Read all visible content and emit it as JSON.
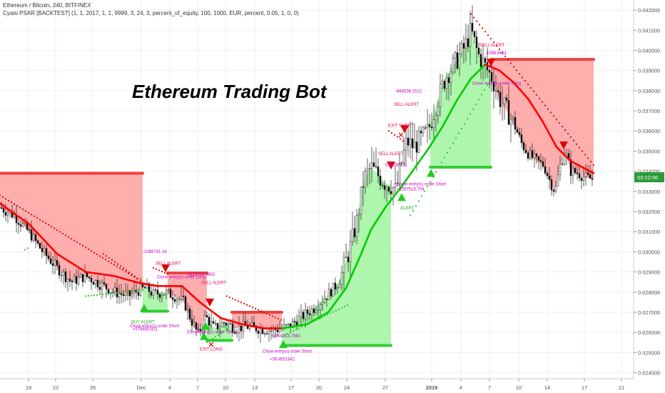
{
  "header": {
    "symbol_line": "Ethereum / Bitcoin, 240, BITFINEX",
    "indicator_line": "Cyato PSAR [BACKTEST] (1, 1, 2017, 1, 1, 9999, 3, 24, 3, percent_of_equity, 100, 1000, EUR, percent, 0.05, 1, 0, 0)"
  },
  "title": "Ethereum Trading Bot",
  "last_price_label": "03:22:06",
  "colors": {
    "up_candle": "#ffffff",
    "down_candle": "#000000",
    "ema": "#ff0000",
    "ema_up": "#00cc00",
    "loss_fill": "#ffaaaa",
    "gain_fill": "#aaf5aa",
    "sar_dots_red": "#e00000",
    "sar_dots_green": "#22cc22",
    "label_red": "#e0005a",
    "label_purple": "#c000c0",
    "price_box": "#2b9a3a"
  },
  "annotations": [
    {
      "text": "-1069741.16",
      "color": "#c000c0",
      "at": [
        200,
        0.02995
      ]
    },
    {
      "text": "SELL ALERT",
      "color": "#e0005a",
      "at": [
        218,
        0.02935
      ]
    },
    {
      "text": "Close entry(s) order Short",
      "color": "#c000c0",
      "at": [
        182,
        0.02625
      ]
    },
    {
      "text": "+579465.821",
      "color": "#c000c0",
      "at": [
        186,
        0.0261
      ]
    },
    {
      "text": "BUY ALERT",
      "color": "#22aa22",
      "at": [
        184,
        0.02645
      ]
    },
    {
      "text": "-1112228.4802",
      "color": "#c000c0",
      "at": [
        262,
        0.0288
      ]
    },
    {
      "text": "SELL ALERT",
      "color": "#e0005a",
      "at": [
        282,
        0.0284
      ]
    },
    {
      "text": "Close entry(s) order Long",
      "color": "#c000c0",
      "at": [
        220,
        0.02868
      ]
    },
    {
      "text": "EXIT LONG",
      "color": "#e0005a",
      "at": [
        280,
        0.0251
      ]
    },
    {
      "text": "Close entry(s) order Short",
      "color": "#c000c0",
      "at": [
        262,
        0.02595
      ]
    },
    {
      "text": "+1090113.7981",
      "color": "#c000c0",
      "at": [
        380,
        0.02575
      ]
    },
    {
      "text": "Close entry(s) order Short",
      "color": "#c000c0",
      "at": [
        368,
        0.025
      ]
    },
    {
      "text": "+39.4551642",
      "color": "#c000c0",
      "at": [
        378,
        0.0246
      ]
    },
    {
      "text": "-864536.1512",
      "color": "#c000c0",
      "at": [
        554,
        0.0379
      ]
    },
    {
      "text": "SELL ALERT",
      "color": "#e0005a",
      "at": [
        552,
        0.03725
      ]
    },
    {
      "text": "EXIT SHORT",
      "color": "#e0005a",
      "at": [
        544,
        0.0362
      ]
    },
    {
      "text": "SELL ALERT",
      "color": "#e0005a",
      "at": [
        530,
        0.0348
      ]
    },
    {
      "text": "-1357587.3",
      "color": "#c000c0",
      "at": [
        538,
        0.03425
      ]
    },
    {
      "text": "Close entry(s) order Short",
      "color": "#c000c0",
      "at": [
        556,
        0.0333
      ]
    },
    {
      "text": "+1057519.704",
      "color": "#c000c0",
      "at": [
        556,
        0.03305
      ]
    },
    {
      "text": "ALERT",
      "color": "#22aa22",
      "at": [
        561,
        0.0321
      ]
    },
    {
      "text": "SELL ALERT",
      "color": "#e0005a",
      "at": [
        672,
        0.0402
      ]
    },
    {
      "text": "-1089.8651",
      "color": "#c000c0",
      "at": [
        680,
        0.0398
      ]
    },
    {
      "text": "Close entry(s) order Long",
      "color": "#c000c0",
      "at": [
        662,
        0.0383
      ]
    }
  ],
  "chart_data": {
    "type": "candlestick",
    "title": "Ethereum Trading Bot",
    "symbol": "Ethereum / Bitcoin",
    "interval": "240",
    "exchange": "BITFINEX",
    "ylim": [
      0.0237,
      0.0425
    ],
    "y_ticks": [
      "0.024000",
      "0.025000",
      "0.026000",
      "0.027000",
      "0.028000",
      "0.029000",
      "0.030000",
      "0.031000",
      "0.032000",
      "0.033000",
      "0.034000",
      "0.035000",
      "0.036000",
      "0.037000",
      "0.038000",
      "0.039000",
      "0.040000",
      "0.041000",
      "0.042000"
    ],
    "x_ticks": [
      "19",
      "22",
      "26",
      "Dec",
      "4",
      "7",
      "10",
      "13",
      "17",
      "20",
      "24",
      "27",
      "2019",
      "4",
      "7",
      "10",
      "14",
      "17",
      "21"
    ],
    "grid": true,
    "close_path": [
      [
        0,
        0.0322
      ],
      [
        20,
        0.0318
      ],
      [
        40,
        0.031
      ],
      [
        60,
        0.03
      ],
      [
        80,
        0.0292
      ],
      [
        100,
        0.0285
      ],
      [
        120,
        0.0288
      ],
      [
        140,
        0.0284
      ],
      [
        160,
        0.028
      ],
      [
        180,
        0.0278
      ],
      [
        195,
        0.0281
      ],
      [
        205,
        0.0282
      ],
      [
        215,
        0.0279
      ],
      [
        230,
        0.028
      ],
      [
        245,
        0.0278
      ],
      [
        258,
        0.0275
      ],
      [
        268,
        0.0266
      ],
      [
        278,
        0.0259
      ],
      [
        288,
        0.0268
      ],
      [
        300,
        0.0262
      ],
      [
        315,
        0.0265
      ],
      [
        330,
        0.0262
      ],
      [
        345,
        0.0263
      ],
      [
        360,
        0.0262
      ],
      [
        380,
        0.0261
      ],
      [
        395,
        0.0262
      ],
      [
        405,
        0.0263
      ],
      [
        420,
        0.0267
      ],
      [
        440,
        0.0272
      ],
      [
        460,
        0.0279
      ],
      [
        475,
        0.0285
      ],
      [
        490,
        0.0301
      ],
      [
        500,
        0.0315
      ],
      [
        510,
        0.0336
      ],
      [
        520,
        0.0342
      ],
      [
        530,
        0.0338
      ],
      [
        540,
        0.0334
      ],
      [
        548,
        0.0333
      ],
      [
        555,
        0.033
      ],
      [
        562,
        0.0343
      ],
      [
        570,
        0.0355
      ],
      [
        580,
        0.0352
      ],
      [
        590,
        0.0356
      ],
      [
        600,
        0.036
      ],
      [
        612,
        0.0374
      ],
      [
        625,
        0.0387
      ],
      [
        640,
        0.0395
      ],
      [
        652,
        0.0402
      ],
      [
        660,
        0.041
      ],
      [
        670,
        0.0398
      ],
      [
        680,
        0.0392
      ],
      [
        690,
        0.0386
      ],
      [
        700,
        0.0376
      ],
      [
        712,
        0.0369
      ],
      [
        722,
        0.0362
      ],
      [
        732,
        0.0353
      ],
      [
        742,
        0.0348
      ],
      [
        752,
        0.0345
      ],
      [
        762,
        0.0343
      ],
      [
        772,
        0.0334
      ],
      [
        778,
        0.033
      ],
      [
        785,
        0.0343
      ],
      [
        792,
        0.035
      ],
      [
        800,
        0.034
      ],
      [
        810,
        0.0339
      ],
      [
        820,
        0.0337
      ],
      [
        832,
        0.0336
      ]
    ],
    "moving_average": [
      [
        0,
        0.0324
      ],
      [
        40,
        0.0314
      ],
      [
        80,
        0.0299
      ],
      [
        120,
        0.029
      ],
      [
        160,
        0.0288
      ],
      [
        190,
        0.0285
      ],
      [
        220,
        0.0283
      ],
      [
        255,
        0.0283
      ],
      [
        280,
        0.0275
      ],
      [
        310,
        0.0267
      ],
      [
        340,
        0.0264
      ],
      [
        370,
        0.0262
      ],
      [
        395,
        0.0262
      ],
      [
        430,
        0.0264
      ],
      [
        460,
        0.027
      ],
      [
        485,
        0.0282
      ],
      [
        505,
        0.0298
      ],
      [
        520,
        0.0311
      ],
      [
        540,
        0.0322
      ],
      [
        560,
        0.0331
      ],
      [
        580,
        0.0341
      ],
      [
        600,
        0.0351
      ],
      [
        620,
        0.0362
      ],
      [
        640,
        0.0375
      ],
      [
        660,
        0.0386
      ],
      [
        680,
        0.0393
      ],
      [
        700,
        0.039
      ],
      [
        720,
        0.0384
      ],
      [
        740,
        0.0376
      ],
      [
        760,
        0.0365
      ],
      [
        780,
        0.0352
      ],
      [
        800,
        0.0345
      ],
      [
        832,
        0.0339
      ]
    ],
    "trades": [
      {
        "side": "short",
        "entry_x": 0,
        "exit_x": 200,
        "stop": 0.0339,
        "result": "loss"
      },
      {
        "side": "long",
        "entry_x": 200,
        "exit_x": 235,
        "stop": 0.02705,
        "result": "gain"
      },
      {
        "side": "short",
        "entry_x": 235,
        "exit_x": 290,
        "stop": 0.02895,
        "result": "loss"
      },
      {
        "side": "long",
        "entry_x": 290,
        "exit_x": 325,
        "stop": 0.0256,
        "result": "gain"
      },
      {
        "side": "short",
        "entry_x": 325,
        "exit_x": 395,
        "stop": 0.027,
        "result": "loss"
      },
      {
        "side": "long",
        "entry_x": 395,
        "exit_x": 548,
        "stop": 0.02535,
        "result": "gain"
      },
      {
        "side": "long",
        "entry_x": 603,
        "exit_x": 688,
        "stop": 0.0342,
        "result": "gain"
      },
      {
        "side": "short",
        "entry_x": 688,
        "exit_x": 832,
        "stop": 0.03955,
        "result": "loss"
      }
    ],
    "last_price": 0.0337
  }
}
